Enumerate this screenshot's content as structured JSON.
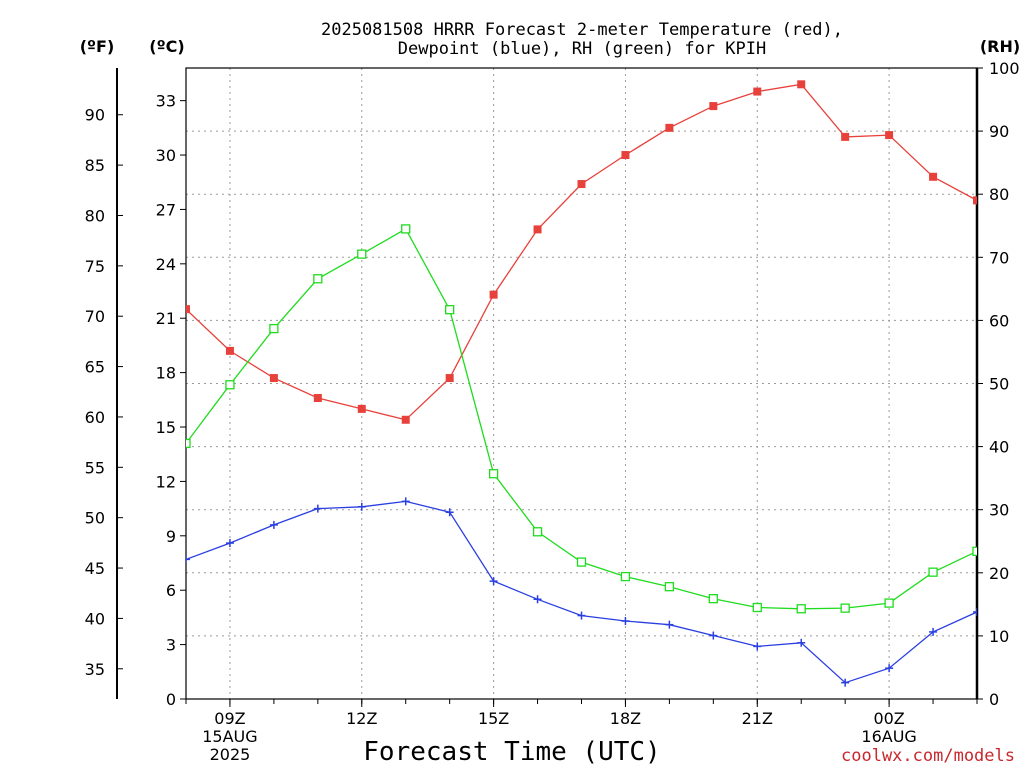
{
  "title_line1": "2025081508 HRRR Forecast 2-meter Temperature (red),",
  "title_line2": "Dewpoint (blue), RH (green) for KPIH",
  "credit": "coolwx.com/models",
  "chart_data": {
    "type": "line",
    "xlabel": "Forecast Time (UTC)",
    "x_hours": [
      8,
      9,
      10,
      11,
      12,
      13,
      14,
      15,
      16,
      17,
      18,
      19,
      20,
      21,
      22,
      23,
      24,
      25,
      26
    ],
    "x_ticks": [
      {
        "hour": 9,
        "label": "09Z",
        "sub1": "15AUG",
        "sub2": "2025"
      },
      {
        "hour": 12,
        "label": "12Z",
        "sub1": "",
        "sub2": ""
      },
      {
        "hour": 15,
        "label": "15Z",
        "sub1": "",
        "sub2": ""
      },
      {
        "hour": 18,
        "label": "18Z",
        "sub1": "",
        "sub2": ""
      },
      {
        "hour": 21,
        "label": "21Z",
        "sub1": "",
        "sub2": ""
      },
      {
        "hour": 24,
        "label": "00Z",
        "sub1": "16AUG",
        "sub2": ""
      }
    ],
    "xlim": [
      8,
      26
    ],
    "y_celsius": {
      "label": "(ºC)",
      "lim": [
        0,
        34.8
      ],
      "ticks": [
        0,
        3,
        6,
        9,
        12,
        15,
        18,
        21,
        24,
        27,
        30,
        33
      ]
    },
    "y_fahrenheit": {
      "label": "(ºF)",
      "ticks": [
        35,
        40,
        45,
        50,
        55,
        60,
        65,
        70,
        75,
        80,
        85,
        90
      ]
    },
    "y_rh": {
      "label": "(RH)",
      "lim": [
        0,
        100
      ],
      "ticks": [
        0,
        10,
        20,
        30,
        40,
        50,
        60,
        70,
        80,
        90,
        100
      ]
    },
    "grid": true,
    "series": [
      {
        "color": "#e8413c",
        "marker": "filled-square",
        "axis": "celsius",
        "values": [
          21.5,
          19.2,
          17.7,
          16.6,
          16.0,
          15.4,
          17.7,
          22.3,
          25.9,
          28.4,
          30.0,
          31.5,
          32.7,
          33.5,
          33.9,
          31.0,
          31.1,
          28.8,
          27.5
        ]
      },
      {
        "color": "#2a3fe0",
        "marker": "plus",
        "axis": "celsius",
        "values": [
          7.7,
          8.6,
          9.6,
          10.5,
          10.6,
          10.9,
          10.3,
          6.5,
          5.5,
          4.6,
          4.3,
          4.1,
          3.5,
          2.9,
          3.1,
          0.9,
          1.7,
          3.7,
          4.8
        ]
      },
      {
        "color": "#1fdc1f",
        "marker": "open-square",
        "axis": "rh",
        "values": [
          40.5,
          49.8,
          58.7,
          66.6,
          70.5,
          74.5,
          61.7,
          35.7,
          26.5,
          21.7,
          19.4,
          17.8,
          15.9,
          14.5,
          14.3,
          14.4,
          15.2,
          20.1,
          23.4
        ]
      }
    ]
  }
}
